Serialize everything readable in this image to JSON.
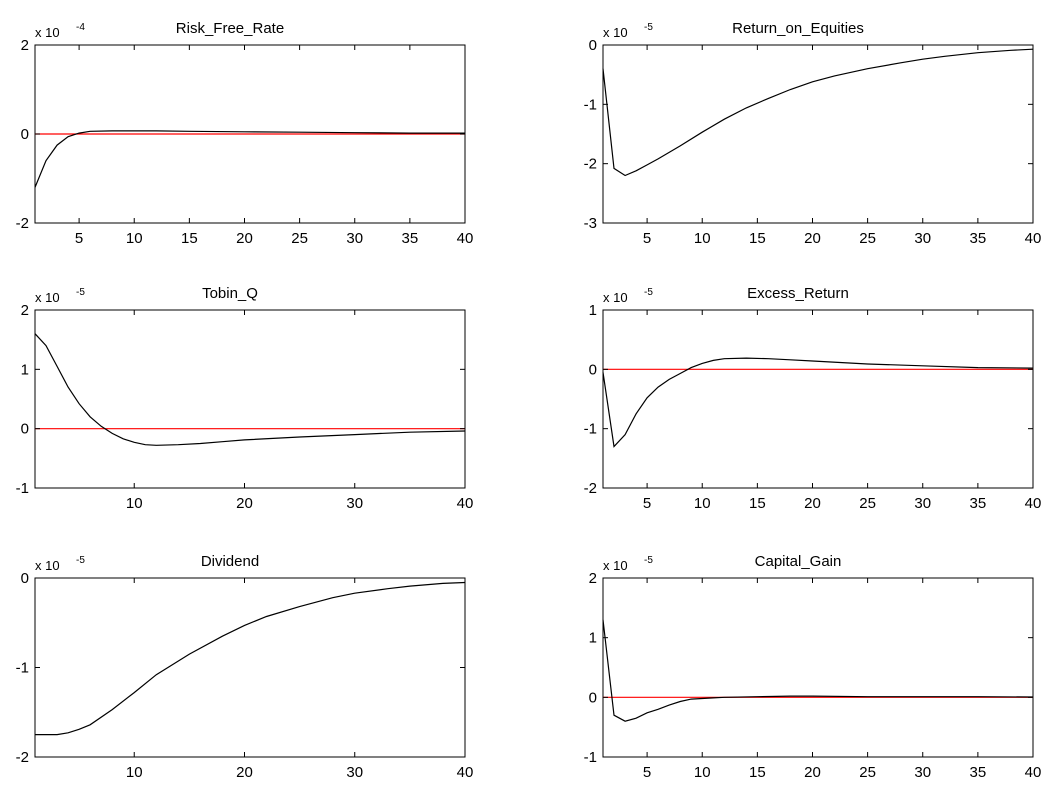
{
  "colors": {
    "series": "#000000",
    "zero_line": "#ff0000",
    "axes": "#000000",
    "background": "#ffffff"
  },
  "chart_data": [
    {
      "type": "line",
      "title": "Risk_Free_Rate",
      "exponent_base": "x 10",
      "exponent": "-4",
      "xlim": [
        1,
        40
      ],
      "ylim": [
        -2,
        2
      ],
      "xticks": [
        5,
        10,
        15,
        20,
        25,
        30,
        35,
        40
      ],
      "yticks": [
        -2,
        0,
        2
      ],
      "zero_line": 0,
      "series": [
        {
          "x": [
            1,
            2,
            3,
            4,
            5,
            6,
            8,
            10,
            12,
            15,
            20,
            25,
            30,
            35,
            40
          ],
          "y": [
            -1.2,
            -0.6,
            -0.25,
            -0.06,
            0.02,
            0.06,
            0.07,
            0.07,
            0.07,
            0.06,
            0.05,
            0.04,
            0.03,
            0.02,
            0.02
          ]
        }
      ]
    },
    {
      "type": "line",
      "title": "Return_on_Equities",
      "exponent_base": "x 10",
      "exponent": "-5",
      "xlim": [
        1,
        40
      ],
      "ylim": [
        -3,
        0
      ],
      "xticks": [
        5,
        10,
        15,
        20,
        25,
        30,
        35,
        40
      ],
      "yticks": [
        -3,
        -2,
        -1,
        0
      ],
      "zero_line": null,
      "series": [
        {
          "x": [
            1,
            2,
            3,
            4,
            5,
            6,
            8,
            10,
            12,
            14,
            16,
            18,
            20,
            22,
            25,
            28,
            30,
            32,
            35,
            38,
            40
          ],
          "y": [
            -0.4,
            -2.08,
            -2.2,
            -2.12,
            -2.02,
            -1.92,
            -1.7,
            -1.47,
            -1.25,
            -1.06,
            -0.9,
            -0.75,
            -0.62,
            -0.52,
            -0.4,
            -0.3,
            -0.24,
            -0.19,
            -0.13,
            -0.09,
            -0.07
          ]
        }
      ]
    },
    {
      "type": "line",
      "title": "Tobin_Q",
      "exponent_base": "x 10",
      "exponent": "-5",
      "xlim": [
        1,
        40
      ],
      "ylim": [
        -1,
        2
      ],
      "xticks": [
        10,
        20,
        30,
        40
      ],
      "yticks": [
        -1,
        0,
        1,
        2
      ],
      "zero_line": 0,
      "series": [
        {
          "x": [
            1,
            2,
            3,
            4,
            5,
            6,
            7,
            8,
            9,
            10,
            11,
            12,
            14,
            16,
            18,
            20,
            25,
            30,
            35,
            40
          ],
          "y": [
            1.6,
            1.4,
            1.05,
            0.7,
            0.42,
            0.2,
            0.04,
            -0.08,
            -0.17,
            -0.23,
            -0.27,
            -0.28,
            -0.27,
            -0.25,
            -0.22,
            -0.19,
            -0.14,
            -0.1,
            -0.06,
            -0.04
          ]
        }
      ]
    },
    {
      "type": "line",
      "title": "Excess_Return",
      "exponent_base": "x 10",
      "exponent": "-5",
      "xlim": [
        1,
        40
      ],
      "ylim": [
        -2,
        1
      ],
      "xticks": [
        5,
        10,
        15,
        20,
        25,
        30,
        35,
        40
      ],
      "yticks": [
        -2,
        -1,
        0,
        1
      ],
      "zero_line": 0,
      "series": [
        {
          "x": [
            1,
            2,
            3,
            4,
            5,
            6,
            7,
            8,
            9,
            10,
            11,
            12,
            14,
            16,
            18,
            20,
            25,
            30,
            35,
            40
          ],
          "y": [
            -0.05,
            -1.3,
            -1.1,
            -0.75,
            -0.48,
            -0.3,
            -0.17,
            -0.07,
            0.03,
            0.1,
            0.15,
            0.18,
            0.19,
            0.18,
            0.16,
            0.14,
            0.09,
            0.06,
            0.03,
            0.02
          ]
        }
      ]
    },
    {
      "type": "line",
      "title": "Dividend",
      "exponent_base": "x 10",
      "exponent": "-5",
      "xlim": [
        1,
        40
      ],
      "ylim": [
        -2,
        0
      ],
      "xticks": [
        10,
        20,
        30,
        40
      ],
      "yticks": [
        -2,
        -1,
        0
      ],
      "zero_line": null,
      "series": [
        {
          "x": [
            1,
            2,
            3,
            4,
            5,
            6,
            8,
            10,
            12,
            15,
            18,
            20,
            22,
            25,
            28,
            30,
            33,
            35,
            38,
            40
          ],
          "y": [
            -1.75,
            -1.75,
            -1.75,
            -1.73,
            -1.69,
            -1.64,
            -1.47,
            -1.28,
            -1.08,
            -0.85,
            -0.65,
            -0.53,
            -0.43,
            -0.32,
            -0.22,
            -0.17,
            -0.12,
            -0.09,
            -0.06,
            -0.05
          ]
        }
      ]
    },
    {
      "type": "line",
      "title": "Capital_Gain",
      "exponent_base": "x 10",
      "exponent": "-5",
      "xlim": [
        1,
        40
      ],
      "ylim": [
        -1,
        2
      ],
      "xticks": [
        5,
        10,
        15,
        20,
        25,
        30,
        35,
        40
      ],
      "yticks": [
        -1,
        0,
        1,
        2
      ],
      "zero_line": 0,
      "series": [
        {
          "x": [
            1,
            2,
            3,
            4,
            5,
            6,
            7,
            8,
            9,
            10,
            11,
            12,
            15,
            18,
            20,
            25,
            30,
            35,
            40
          ],
          "y": [
            1.3,
            -0.3,
            -0.4,
            -0.35,
            -0.26,
            -0.2,
            -0.13,
            -0.07,
            -0.03,
            -0.02,
            -0.01,
            0,
            0.01,
            0.02,
            0.02,
            0.01,
            0.01,
            0.01,
            0.005
          ]
        }
      ]
    }
  ]
}
